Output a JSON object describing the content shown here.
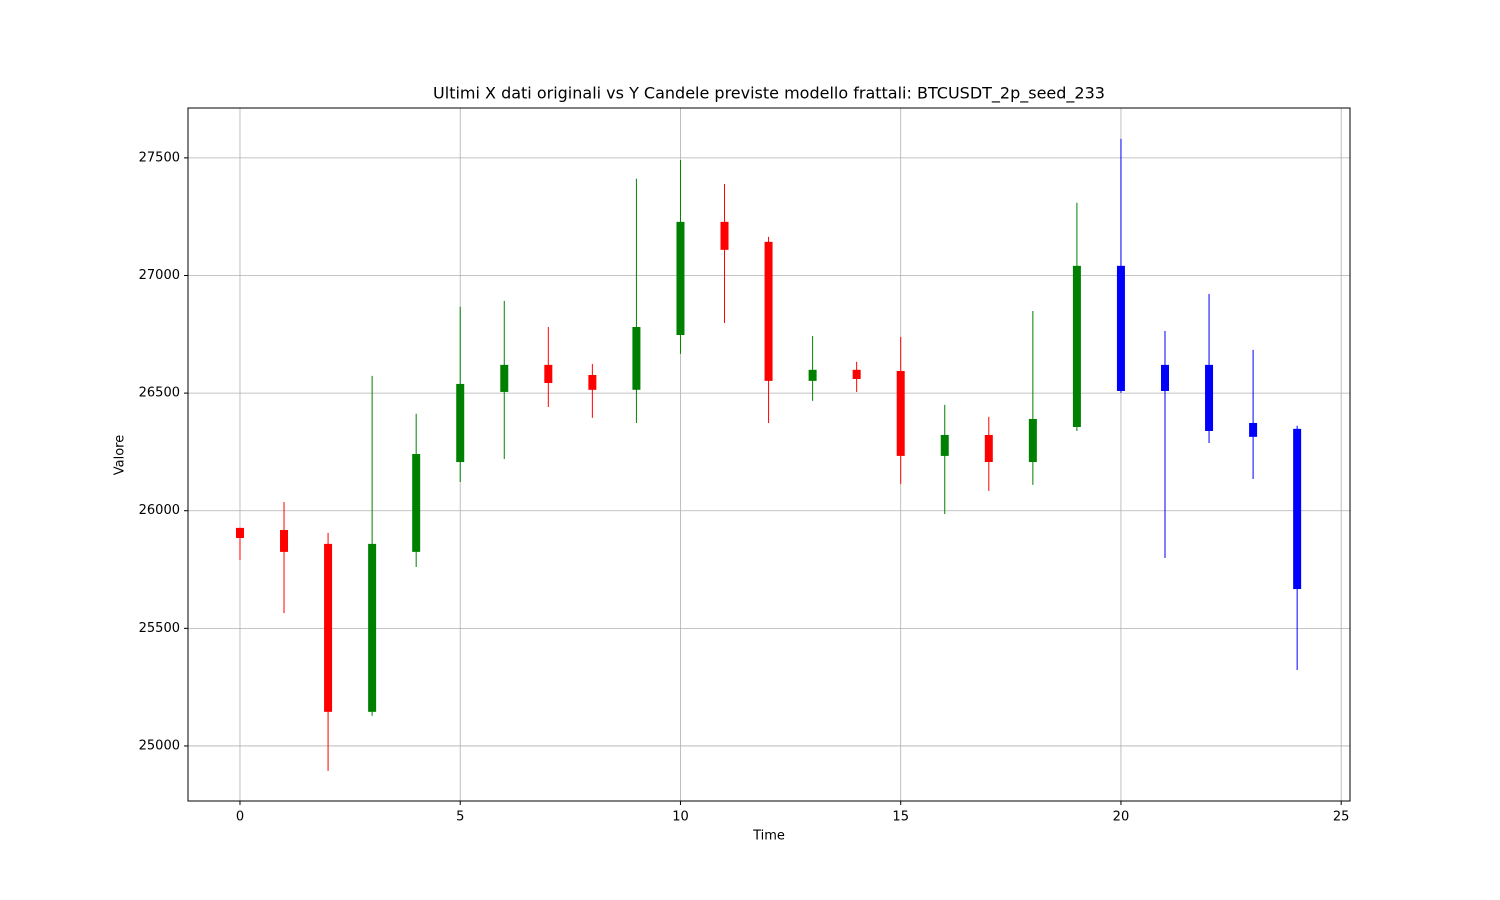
{
  "chart_data": {
    "type": "candlestick",
    "title": "Ultimi X dati originali vs Y Candele previste modello frattali: BTCUSDT_2p_seed_233",
    "x_label": "Time",
    "y_label": "Valore",
    "x": [
      0,
      1,
      2,
      3,
      4,
      5,
      6,
      7,
      8,
      9,
      10,
      11,
      12,
      13,
      14,
      15,
      16,
      17,
      18,
      19,
      20,
      21,
      22,
      23,
      24
    ],
    "open": [
      25927,
      25918,
      25859,
      25145,
      25825,
      26207,
      26505,
      26620,
      26577,
      26514,
      26747,
      27228,
      27143,
      26552,
      26599,
      26594,
      26233,
      26322,
      26207,
      26356,
      27041,
      26509,
      26620,
      26373,
      26348
    ],
    "high": [
      25927,
      26037,
      25906,
      26573,
      26412,
      26867,
      26892,
      26781,
      26624,
      27411,
      27491,
      27389,
      27164,
      26743,
      26633,
      26739,
      26450,
      26399,
      26849,
      27309,
      27581,
      26764,
      26922,
      26684,
      26361
    ],
    "low": [
      25791,
      25565,
      24894,
      25128,
      25761,
      26122,
      26220,
      26441,
      26395,
      26373,
      26667,
      26798,
      26373,
      26467,
      26505,
      26114,
      25986,
      26084,
      26110,
      26339,
      26501,
      25799,
      26288,
      26135,
      25323
    ],
    "close": [
      25884,
      25825,
      25145,
      25859,
      26241,
      26539,
      26620,
      26543,
      26514,
      26781,
      27228,
      27109,
      26552,
      26599,
      26560,
      26233,
      26322,
      26207,
      26390,
      27041,
      26509,
      26620,
      26339,
      26314,
      25667
    ],
    "colors": [
      "red",
      "red",
      "red",
      "green",
      "green",
      "green",
      "green",
      "red",
      "red",
      "green",
      "green",
      "red",
      "red",
      "green",
      "red",
      "red",
      "green",
      "red",
      "green",
      "green",
      "blue",
      "blue",
      "blue",
      "blue",
      "blue"
    ],
    "xlim": [
      -1.18,
      25.2
    ],
    "ylim": [
      24766,
      27712
    ],
    "xticks": [
      0,
      5,
      10,
      15,
      20,
      25
    ],
    "yticks": [
      25000,
      25500,
      26000,
      26500,
      27000,
      27500
    ],
    "grid": true
  }
}
